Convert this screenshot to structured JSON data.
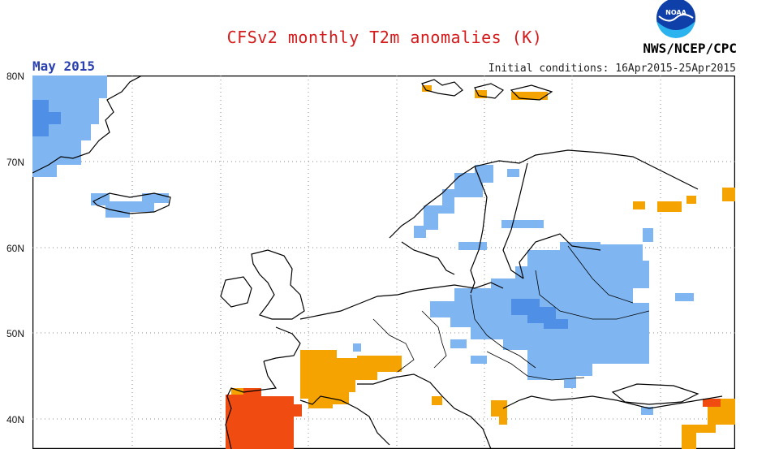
{
  "header": {
    "title": "CFSv2 monthly T2m anomalies (K)",
    "month": "May 2015",
    "initial_conditions": "Initial conditions: 16Apr2015-25Apr2015",
    "agency": "NWS/NCEP/CPC",
    "logo_text": "NOAA"
  },
  "map": {
    "latitude_labels": [
      "80N",
      "70N",
      "60N",
      "50N",
      "40N"
    ],
    "region": "Europe",
    "colors": {
      "cold_anomaly": "#7fb6f2",
      "cold_anomaly_strong": "#4f90e6",
      "warm_anomaly": "#f5a300",
      "warm_anomaly_strong": "#f04b10",
      "coastline": "#000000",
      "grid": "#888888"
    }
  }
}
